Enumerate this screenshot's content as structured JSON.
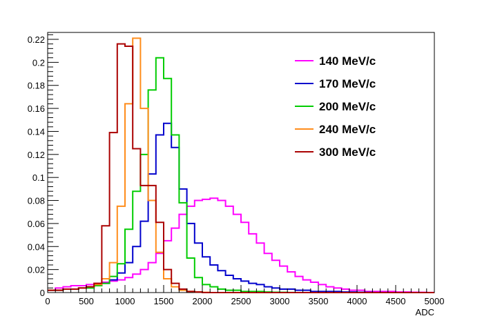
{
  "chart_data": {
    "type": "line",
    "style": "step-histogram",
    "xlabel": "ADC",
    "ylabel": "",
    "title": "",
    "xlim": [
      0,
      5000
    ],
    "ylim": [
      0,
      0.226
    ],
    "bin_width": 100,
    "x_ticks": [
      0,
      500,
      1000,
      1500,
      2000,
      2500,
      3000,
      3500,
      4000,
      4500,
      5000
    ],
    "x_tick_labels": [
      "0",
      "500",
      "1000",
      "1500",
      "2000",
      "2500",
      "3000",
      "3500",
      "4000",
      "4500",
      "5000"
    ],
    "y_ticks": [
      0,
      0.02,
      0.04,
      0.06,
      0.08,
      0.1,
      0.12,
      0.14,
      0.16,
      0.18,
      0.2,
      0.22
    ],
    "y_tick_labels": [
      "0",
      "0.02",
      "0.04",
      "0.06",
      "0.08",
      "0.1",
      "0.12",
      "0.14",
      "0.16",
      "0.18",
      "0.2",
      "0.22"
    ],
    "grid": false,
    "legend_position": "top-right",
    "series": [
      {
        "name": "140 MeV/c",
        "color": "#ff00ff",
        "values": [
          0.002,
          0.004,
          0.005,
          0.006,
          0.006,
          0.007,
          0.008,
          0.009,
          0.01,
          0.011,
          0.013,
          0.016,
          0.02,
          0.026,
          0.034,
          0.045,
          0.056,
          0.068,
          0.075,
          0.08,
          0.081,
          0.082,
          0.08,
          0.075,
          0.068,
          0.061,
          0.051,
          0.043,
          0.034,
          0.028,
          0.023,
          0.018,
          0.014,
          0.011,
          0.009,
          0.007,
          0.005,
          0.004,
          0.003,
          0.002,
          0.002,
          0.001,
          0.001,
          0.001,
          0.001,
          0.0005,
          0.0005,
          0.0003,
          0.0002,
          0.0001
        ]
      },
      {
        "name": "170 MeV/c",
        "color": "#0000cc",
        "values": [
          0.002,
          0.002,
          0.003,
          0.003,
          0.004,
          0.005,
          0.006,
          0.008,
          0.011,
          0.017,
          0.026,
          0.04,
          0.062,
          0.103,
          0.137,
          0.147,
          0.126,
          0.09,
          0.06,
          0.043,
          0.031,
          0.024,
          0.019,
          0.015,
          0.012,
          0.01,
          0.008,
          0.007,
          0.005,
          0.004,
          0.003,
          0.003,
          0.002,
          0.002,
          0.001,
          0.001,
          0.001,
          0.001,
          0.0005,
          0.0005,
          0.0003,
          0.0002,
          0.0001,
          0.0001,
          0,
          0,
          0,
          0,
          0,
          0
        ]
      },
      {
        "name": "200 MeV/c",
        "color": "#00cc00",
        "values": [
          0.002,
          0.002,
          0.003,
          0.003,
          0.004,
          0.004,
          0.006,
          0.008,
          0.014,
          0.025,
          0.055,
          0.088,
          0.12,
          0.176,
          0.204,
          0.186,
          0.137,
          0.078,
          0.03,
          0.013,
          0.007,
          0.005,
          0.003,
          0.002,
          0.002,
          0.001,
          0.001,
          0.001,
          0.0005,
          0.0003,
          0.0002,
          0.0001,
          0,
          0,
          0,
          0,
          0,
          0,
          0,
          0,
          0,
          0,
          0,
          0,
          0,
          0,
          0,
          0,
          0,
          0
        ]
      },
      {
        "name": "240 MeV/c",
        "color": "#ff8c1a",
        "values": [
          0.002,
          0.002,
          0.003,
          0.003,
          0.004,
          0.005,
          0.007,
          0.012,
          0.026,
          0.075,
          0.164,
          0.221,
          0.16,
          0.08,
          0.035,
          0.012,
          0.005,
          0.002,
          0.001,
          0.0005,
          0.0002,
          0,
          0,
          0,
          0,
          0,
          0,
          0,
          0,
          0,
          0,
          0,
          0,
          0,
          0,
          0,
          0,
          0,
          0,
          0,
          0,
          0,
          0,
          0,
          0,
          0,
          0,
          0,
          0,
          0
        ]
      },
      {
        "name": "300 MeV/c",
        "color": "#aa0000",
        "values": [
          0.002,
          0.002,
          0.003,
          0.003,
          0.004,
          0.005,
          0.008,
          0.058,
          0.139,
          0.216,
          0.214,
          0.125,
          0.093,
          0.093,
          0.061,
          0.02,
          0.008,
          0.003,
          0.001,
          0.0005,
          0,
          0,
          0,
          0,
          0,
          0,
          0,
          0,
          0,
          0,
          0,
          0,
          0,
          0,
          0,
          0,
          0,
          0,
          0,
          0,
          0,
          0,
          0,
          0,
          0,
          0,
          0,
          0,
          0,
          0
        ]
      }
    ]
  }
}
